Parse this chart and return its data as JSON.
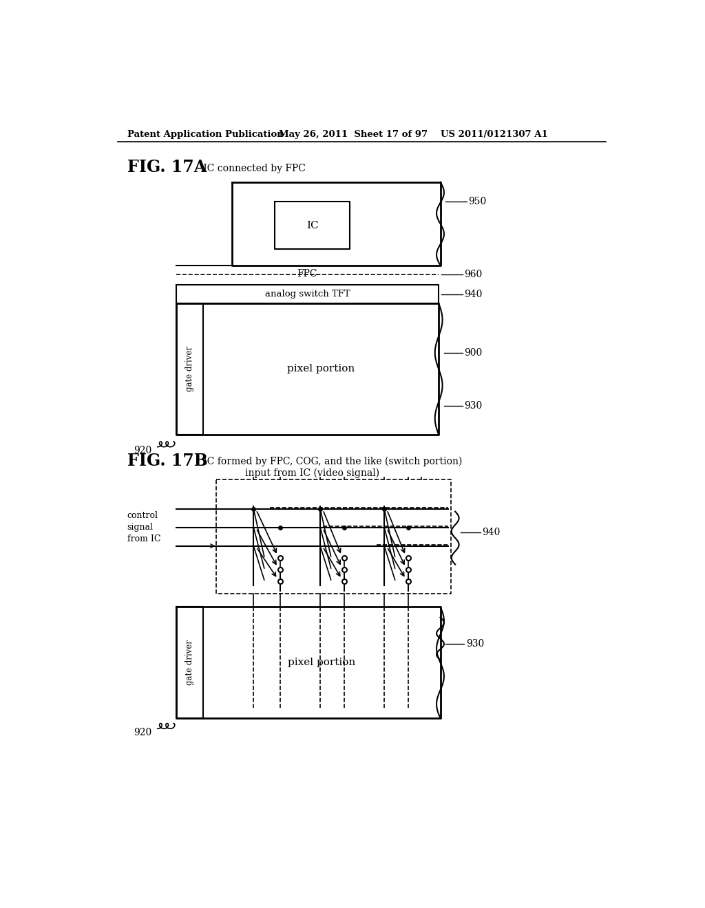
{
  "bg_color": "#ffffff",
  "header_text": "Patent Application Publication",
  "header_date": "May 26, 2011  Sheet 17 of 97",
  "header_patent": "US 2011/0121307 A1",
  "fig17a_bold": "FIG. 17A",
  "fig17a_rest": " IC connected by FPC",
  "fig17b_bold": "FIG. 17B",
  "fig17b_rest": " IC formed by FPC, COG, and the like (switch portion)",
  "fig17b_sub": "input from IC (video signal)",
  "text_IC": "IC",
  "text_FPC": "FPC",
  "text_analog": "analog switch TFT",
  "text_pixel_a": "pixel portion",
  "text_gate_a": "gate driver",
  "text_pixel_b": "pixel portion",
  "text_gate_b": "gate driver",
  "text_control": "control\nsignal\nfrom IC",
  "lbl_950": "950",
  "lbl_960": "960",
  "lbl_940a": "940",
  "lbl_900": "900",
  "lbl_930a": "930",
  "lbl_920a": "920",
  "lbl_940b": "940",
  "lbl_930b": "930",
  "lbl_920b": "920"
}
